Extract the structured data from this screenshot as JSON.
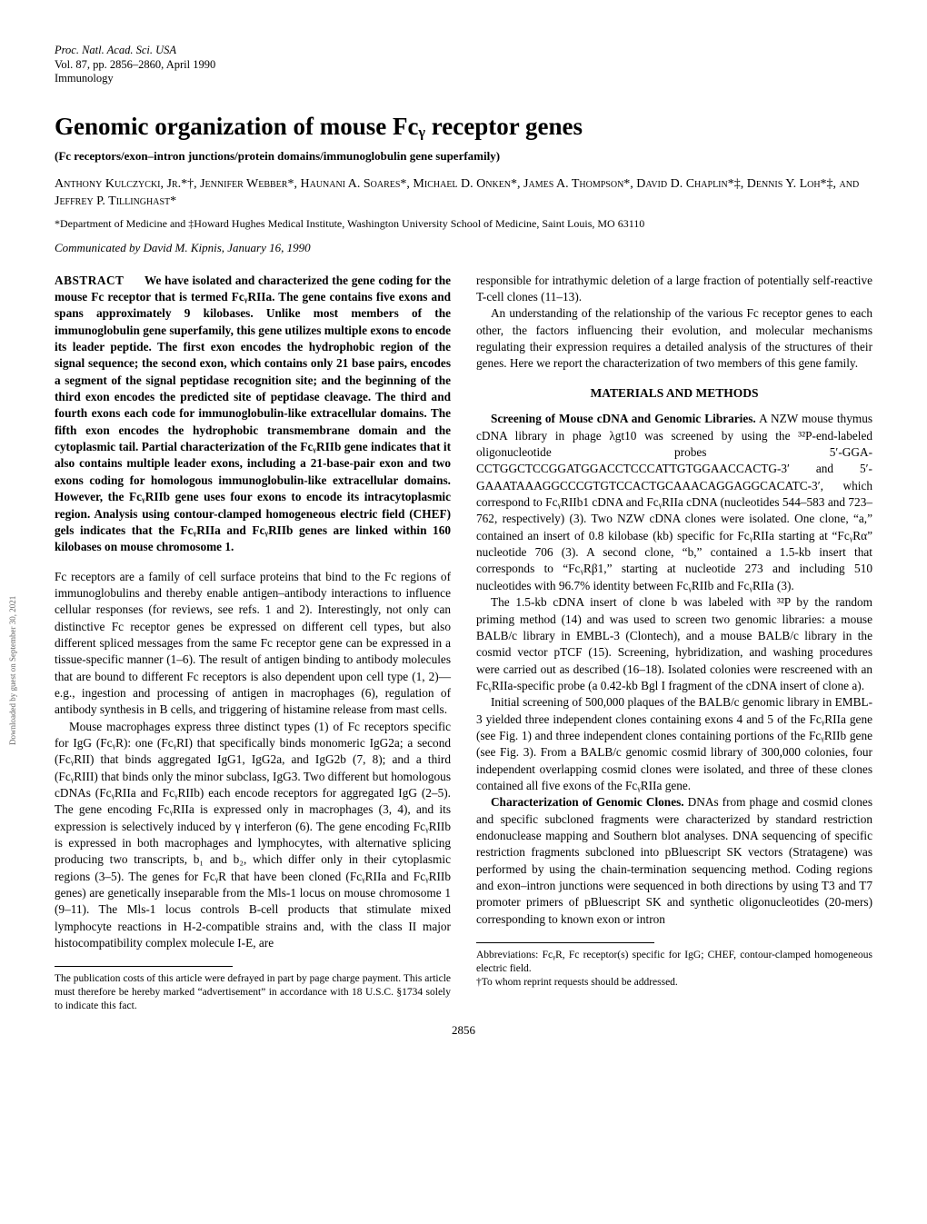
{
  "header": {
    "journal": "Proc. Natl. Acad. Sci. USA",
    "vol_pages": "Vol. 87, pp. 2856–2860, April 1990",
    "section": "Immunology"
  },
  "title": "Genomic organization of mouse Fcᵧ receptor genes",
  "subtitle": "(Fc receptors/exon–intron junctions/protein domains/immunoglobulin gene superfamily)",
  "authors": "Anthony Kulczycki, Jr.*†, Jennifer Webber*, Haunani A. Soares*, Michael D. Onken*, James A. Thompson*, David D. Chaplin*‡, Dennis Y. Loh*‡, and Jeffrey P. Tillinghast*",
  "affiliation": "*Department of Medicine and ‡Howard Hughes Medical Institute, Washington University School of Medicine, Saint Louis, MO 63110",
  "communicated_by": "Communicated by David M. Kipnis, January 16, 1990",
  "abstract": {
    "label": "ABSTRACT",
    "text": "We have isolated and characterized the gene coding for the mouse Fc receptor that is termed FcᵧRIIa. The gene contains five exons and spans approximately 9 kilobases. Unlike most members of the immunoglobulin gene superfamily, this gene utilizes multiple exons to encode its leader peptide. The first exon encodes the hydrophobic region of the signal sequence; the second exon, which contains only 21 base pairs, encodes a segment of the signal peptidase recognition site; and the beginning of the third exon encodes the predicted site of peptidase cleavage. The third and fourth exons each code for immunoglobulin-like extracellular domains. The fifth exon encodes the hydrophobic transmembrane domain and the cytoplasmic tail. Partial characterization of the FcᵧRIIb gene indicates that it also contains multiple leader exons, including a 21-base-pair exon and two exons coding for homologous immunoglobulin-like extracellular domains. However, the FcᵧRIIb gene uses four exons to encode its intracytoplasmic region. Analysis using contour-clamped homogeneous electric field (CHEF) gels indicates that the FcᵧRIIa and FcᵧRIIb genes are linked within 160 kilobases on mouse chromosome 1."
  },
  "left_col": {
    "p1": "Fc receptors are a family of cell surface proteins that bind to the Fc regions of immunoglobulins and thereby enable antigen–antibody interactions to influence cellular responses (for reviews, see refs. 1 and 2). Interestingly, not only can distinctive Fc receptor genes be expressed on different cell types, but also different spliced messages from the same Fc receptor gene can be expressed in a tissue-specific manner (1–6). The result of antigen binding to antibody molecules that are bound to different Fc receptors is also dependent upon cell type (1, 2)—e.g., ingestion and processing of antigen in macrophages (6), regulation of antibody synthesis in B cells, and triggering of histamine release from mast cells.",
    "p2": "Mouse macrophages express three distinct types (1) of Fc receptors specific for IgG (FcᵧR): one (FcᵧRI) that specifically binds monomeric IgG2a; a second (FcᵧRII) that binds aggregated IgG1, IgG2a, and IgG2b (7, 8); and a third (FcᵧRIII) that binds only the minor subclass, IgG3. Two different but homologous cDNAs (FcᵧRIIa and FcᵧRIIb) each encode receptors for aggregated IgG (2–5). The gene encoding FcᵧRIIa is expressed only in macrophages (3, 4), and its expression is selectively induced by γ interferon (6). The gene encoding FcᵧRIIb is expressed in both macrophages and lymphocytes, with alternative splicing producing two transcripts, b₁ and b₂, which differ only in their cytoplasmic regions (3–5). The genes for FcᵧR that have been cloned (FcᵧRIIa and FcᵧRIIb genes) are genetically inseparable from the Mls-1 locus on mouse chromosome 1 (9–11). The Mls-1 locus controls B-cell products that stimulate mixed lymphocyte reactions in H-2-compatible strains and, with the class II major histocompatibility complex molecule I-E, are",
    "footnote": "The publication costs of this article were defrayed in part by page charge payment. This article must therefore be hereby marked “advertisement” in accordance with 18 U.S.C. §1734 solely to indicate this fact."
  },
  "right_col": {
    "p1": "responsible for intrathymic deletion of a large fraction of potentially self-reactive T-cell clones (11–13).",
    "p2": "An understanding of the relationship of the various Fc receptor genes to each other, the factors influencing their evolution, and molecular mechanisms regulating their expression requires a detailed analysis of the structures of their genes. Here we report the characterization of two members of this gene family.",
    "methods_heading": "MATERIALS AND METHODS",
    "m1_head": "Screening of Mouse cDNA and Genomic Libraries.",
    "m1_body": "A NZW mouse thymus cDNA library in phage λgt10 was screened by using the ³²P-end-labeled oligonucleotide probes 5′-GGA­CCTGGCTCCGGATGGACCTCCCATTGTGGAAC­CACTG-3′ and 5′-GAAATAAAGGCCCGTGTCCACTG­CAAACAGGAGGCACATC-3′, which correspond to FcᵧRIIb1 cDNA and FcᵧRIIa cDNA (nucleotides 544–583 and 723–762, respectively) (3). Two NZW cDNA clones were isolated. One clone, “a,” contained an insert of 0.8 kilobase (kb) specific for FcᵧRIIa starting at “FcᵧRα” nucleotide 706 (3). A second clone, “b,” contained a 1.5-kb insert that corresponds to “FcᵧRβ1,” starting at nucleotide 273 and including 510 nucleotides with 96.7% identity between FcᵧRIIb and FcᵧRIIa (3).",
    "m2": "The 1.5-kb cDNA insert of clone b was labeled with ³²P by the random priming method (14) and was used to screen two genomic libraries: a mouse BALB/c library in EMBL-3 (Clontech), and a mouse BALB/c library in the cosmid vector pTCF (15). Screening, hybridization, and washing procedures were carried out as described (16–18). Isolated colonies were rescreened with an FcᵧRIIa-specific probe (a 0.42-kb Bgl I fragment of the cDNA insert of clone a).",
    "m3": "Initial screening of 500,000 plaques of the BALB/c genomic library in EMBL-3 yielded three independent clones containing exons 4 and 5 of the FcᵧRIIa gene (see Fig. 1) and three independent clones containing portions of the FcᵧRIIb gene (see Fig. 3). From a BALB/c genomic cosmid library of 300,000 colonies, four independent overlapping cosmid clones were isolated, and three of these clones contained all five exons of the FcᵧRIIa gene.",
    "m4_head": "Characterization of Genomic Clones.",
    "m4_body": "DNAs from phage and cosmid clones and specific subcloned fragments were characterized by standard restriction endonuclease mapping and Southern blot analyses. DNA sequencing of specific restriction fragments subcloned into pBluescript SK vectors (Stratagene) was performed by using the chain-termination sequencing method. Coding regions and exon–intron junctions were sequenced in both directions by using T3 and T7 promoter primers of pBluescript SK and synthetic oligonucleotides (20-mers) corresponding to known exon or intron",
    "footnote1": "Abbreviations: FcᵧR, Fc receptor(s) specific for IgG; CHEF, contour-clamped homogeneous electric field.",
    "footnote2": "†To whom reprint requests should be addressed."
  },
  "page_number": "2856",
  "sidebar": "Downloaded by guest on September 30, 2021"
}
